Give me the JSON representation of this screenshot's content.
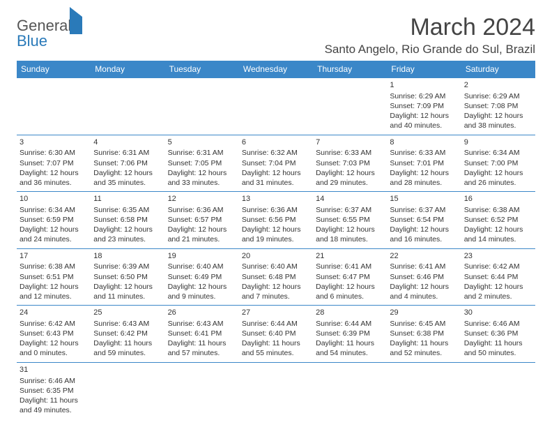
{
  "brand": {
    "word1": "General",
    "word2": "Blue"
  },
  "title": "March 2024",
  "location": "Santo Angelo, Rio Grande do Sul, Brazil",
  "colors": {
    "header_bg": "#3b87c8",
    "header_text": "#ffffff",
    "border": "#3b87c8",
    "text": "#333333",
    "brand_gray": "#555555",
    "brand_blue": "#2a7ab9"
  },
  "weekdays": [
    "Sunday",
    "Monday",
    "Tuesday",
    "Wednesday",
    "Thursday",
    "Friday",
    "Saturday"
  ],
  "weeks": [
    [
      null,
      null,
      null,
      null,
      null,
      {
        "day": "1",
        "sunrise": "Sunrise: 6:29 AM",
        "sunset": "Sunset: 7:09 PM",
        "daylight1": "Daylight: 12 hours",
        "daylight2": "and 40 minutes."
      },
      {
        "day": "2",
        "sunrise": "Sunrise: 6:29 AM",
        "sunset": "Sunset: 7:08 PM",
        "daylight1": "Daylight: 12 hours",
        "daylight2": "and 38 minutes."
      }
    ],
    [
      {
        "day": "3",
        "sunrise": "Sunrise: 6:30 AM",
        "sunset": "Sunset: 7:07 PM",
        "daylight1": "Daylight: 12 hours",
        "daylight2": "and 36 minutes."
      },
      {
        "day": "4",
        "sunrise": "Sunrise: 6:31 AM",
        "sunset": "Sunset: 7:06 PM",
        "daylight1": "Daylight: 12 hours",
        "daylight2": "and 35 minutes."
      },
      {
        "day": "5",
        "sunrise": "Sunrise: 6:31 AM",
        "sunset": "Sunset: 7:05 PM",
        "daylight1": "Daylight: 12 hours",
        "daylight2": "and 33 minutes."
      },
      {
        "day": "6",
        "sunrise": "Sunrise: 6:32 AM",
        "sunset": "Sunset: 7:04 PM",
        "daylight1": "Daylight: 12 hours",
        "daylight2": "and 31 minutes."
      },
      {
        "day": "7",
        "sunrise": "Sunrise: 6:33 AM",
        "sunset": "Sunset: 7:03 PM",
        "daylight1": "Daylight: 12 hours",
        "daylight2": "and 29 minutes."
      },
      {
        "day": "8",
        "sunrise": "Sunrise: 6:33 AM",
        "sunset": "Sunset: 7:01 PM",
        "daylight1": "Daylight: 12 hours",
        "daylight2": "and 28 minutes."
      },
      {
        "day": "9",
        "sunrise": "Sunrise: 6:34 AM",
        "sunset": "Sunset: 7:00 PM",
        "daylight1": "Daylight: 12 hours",
        "daylight2": "and 26 minutes."
      }
    ],
    [
      {
        "day": "10",
        "sunrise": "Sunrise: 6:34 AM",
        "sunset": "Sunset: 6:59 PM",
        "daylight1": "Daylight: 12 hours",
        "daylight2": "and 24 minutes."
      },
      {
        "day": "11",
        "sunrise": "Sunrise: 6:35 AM",
        "sunset": "Sunset: 6:58 PM",
        "daylight1": "Daylight: 12 hours",
        "daylight2": "and 23 minutes."
      },
      {
        "day": "12",
        "sunrise": "Sunrise: 6:36 AM",
        "sunset": "Sunset: 6:57 PM",
        "daylight1": "Daylight: 12 hours",
        "daylight2": "and 21 minutes."
      },
      {
        "day": "13",
        "sunrise": "Sunrise: 6:36 AM",
        "sunset": "Sunset: 6:56 PM",
        "daylight1": "Daylight: 12 hours",
        "daylight2": "and 19 minutes."
      },
      {
        "day": "14",
        "sunrise": "Sunrise: 6:37 AM",
        "sunset": "Sunset: 6:55 PM",
        "daylight1": "Daylight: 12 hours",
        "daylight2": "and 18 minutes."
      },
      {
        "day": "15",
        "sunrise": "Sunrise: 6:37 AM",
        "sunset": "Sunset: 6:54 PM",
        "daylight1": "Daylight: 12 hours",
        "daylight2": "and 16 minutes."
      },
      {
        "day": "16",
        "sunrise": "Sunrise: 6:38 AM",
        "sunset": "Sunset: 6:52 PM",
        "daylight1": "Daylight: 12 hours",
        "daylight2": "and 14 minutes."
      }
    ],
    [
      {
        "day": "17",
        "sunrise": "Sunrise: 6:38 AM",
        "sunset": "Sunset: 6:51 PM",
        "daylight1": "Daylight: 12 hours",
        "daylight2": "and 12 minutes."
      },
      {
        "day": "18",
        "sunrise": "Sunrise: 6:39 AM",
        "sunset": "Sunset: 6:50 PM",
        "daylight1": "Daylight: 12 hours",
        "daylight2": "and 11 minutes."
      },
      {
        "day": "19",
        "sunrise": "Sunrise: 6:40 AM",
        "sunset": "Sunset: 6:49 PM",
        "daylight1": "Daylight: 12 hours",
        "daylight2": "and 9 minutes."
      },
      {
        "day": "20",
        "sunrise": "Sunrise: 6:40 AM",
        "sunset": "Sunset: 6:48 PM",
        "daylight1": "Daylight: 12 hours",
        "daylight2": "and 7 minutes."
      },
      {
        "day": "21",
        "sunrise": "Sunrise: 6:41 AM",
        "sunset": "Sunset: 6:47 PM",
        "daylight1": "Daylight: 12 hours",
        "daylight2": "and 6 minutes."
      },
      {
        "day": "22",
        "sunrise": "Sunrise: 6:41 AM",
        "sunset": "Sunset: 6:46 PM",
        "daylight1": "Daylight: 12 hours",
        "daylight2": "and 4 minutes."
      },
      {
        "day": "23",
        "sunrise": "Sunrise: 6:42 AM",
        "sunset": "Sunset: 6:44 PM",
        "daylight1": "Daylight: 12 hours",
        "daylight2": "and 2 minutes."
      }
    ],
    [
      {
        "day": "24",
        "sunrise": "Sunrise: 6:42 AM",
        "sunset": "Sunset: 6:43 PM",
        "daylight1": "Daylight: 12 hours",
        "daylight2": "and 0 minutes."
      },
      {
        "day": "25",
        "sunrise": "Sunrise: 6:43 AM",
        "sunset": "Sunset: 6:42 PM",
        "daylight1": "Daylight: 11 hours",
        "daylight2": "and 59 minutes."
      },
      {
        "day": "26",
        "sunrise": "Sunrise: 6:43 AM",
        "sunset": "Sunset: 6:41 PM",
        "daylight1": "Daylight: 11 hours",
        "daylight2": "and 57 minutes."
      },
      {
        "day": "27",
        "sunrise": "Sunrise: 6:44 AM",
        "sunset": "Sunset: 6:40 PM",
        "daylight1": "Daylight: 11 hours",
        "daylight2": "and 55 minutes."
      },
      {
        "day": "28",
        "sunrise": "Sunrise: 6:44 AM",
        "sunset": "Sunset: 6:39 PM",
        "daylight1": "Daylight: 11 hours",
        "daylight2": "and 54 minutes."
      },
      {
        "day": "29",
        "sunrise": "Sunrise: 6:45 AM",
        "sunset": "Sunset: 6:38 PM",
        "daylight1": "Daylight: 11 hours",
        "daylight2": "and 52 minutes."
      },
      {
        "day": "30",
        "sunrise": "Sunrise: 6:46 AM",
        "sunset": "Sunset: 6:36 PM",
        "daylight1": "Daylight: 11 hours",
        "daylight2": "and 50 minutes."
      }
    ],
    [
      {
        "day": "31",
        "sunrise": "Sunrise: 6:46 AM",
        "sunset": "Sunset: 6:35 PM",
        "daylight1": "Daylight: 11 hours",
        "daylight2": "and 49 minutes."
      },
      null,
      null,
      null,
      null,
      null,
      null
    ]
  ]
}
